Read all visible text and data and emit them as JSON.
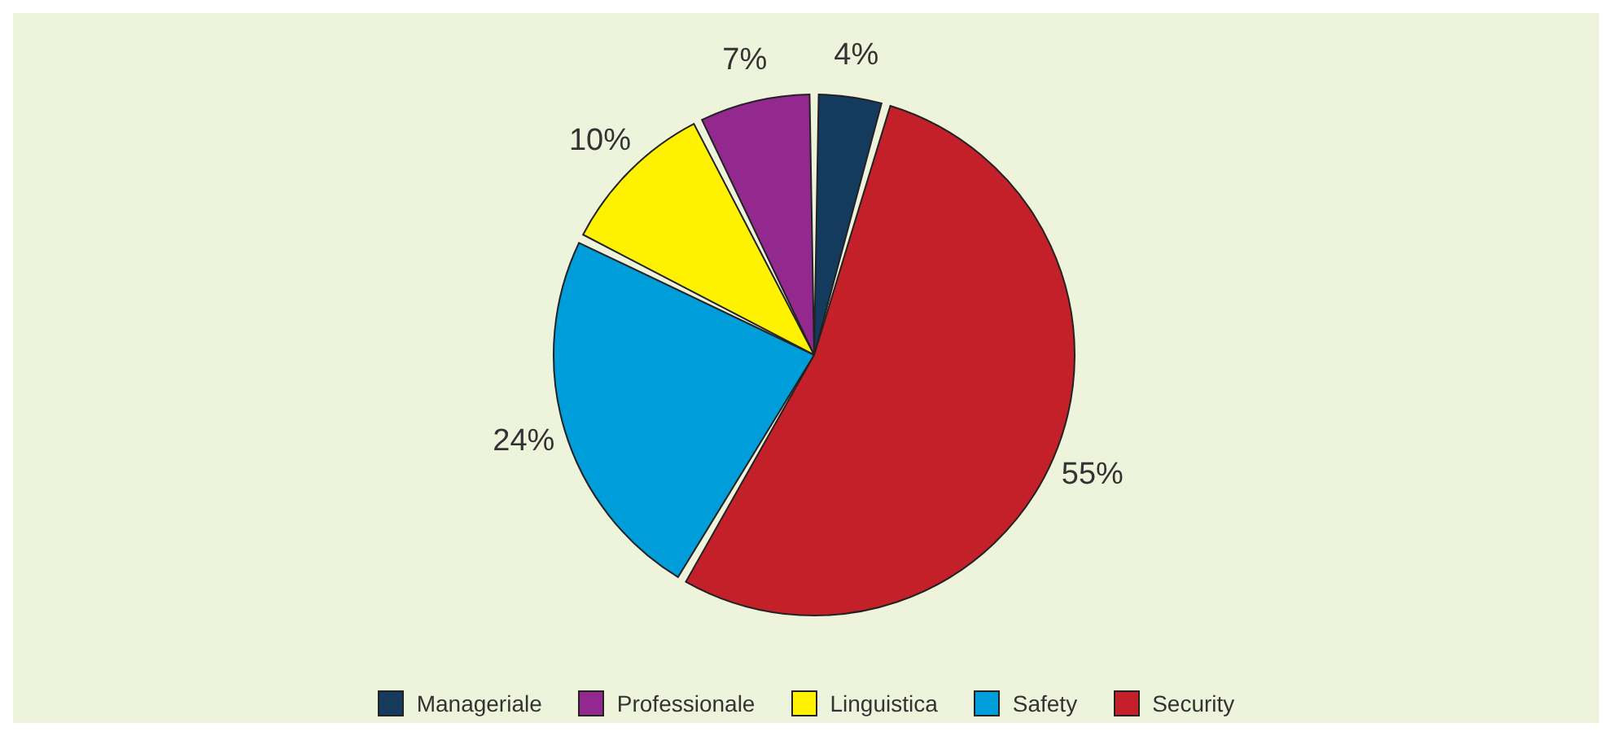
{
  "chart_data": {
    "type": "pie",
    "categories": [
      "Manageriale",
      "Professionale",
      "Linguistica",
      "Safety",
      "Security"
    ],
    "values": [
      4,
      7,
      10,
      24,
      55
    ],
    "colors": [
      "#143a5e",
      "#93288e",
      "#fff200",
      "#009ddb",
      "#c4202a"
    ],
    "value_labels": [
      "4%",
      "7%",
      "10%",
      "24%",
      "55%"
    ],
    "legend": "bottom"
  }
}
